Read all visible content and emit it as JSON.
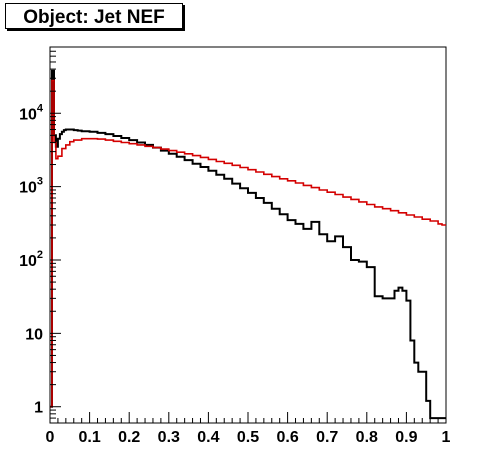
{
  "chart_data": {
    "type": "line",
    "title": "Object: Jet NEF",
    "xlabel": "",
    "ylabel": "",
    "xlim": [
      0,
      1
    ],
    "ylim": [
      0.6,
      80000
    ],
    "yscale": "log",
    "grid": false,
    "legend": "none",
    "x_ticks": [
      0,
      0.1,
      0.2,
      0.3,
      0.4,
      0.5,
      0.6,
      0.7,
      0.8,
      0.9,
      1
    ],
    "x_tick_labels": [
      "0",
      "0.1",
      "0.2",
      "0.3",
      "0.4",
      "0.5",
      "0.6",
      "0.7",
      "0.8",
      "0.9",
      "1"
    ],
    "y_ticks": [
      1,
      10,
      100,
      1000,
      10000
    ],
    "y_tick_labels": [
      {
        "base": "",
        "exp": "",
        "text": "1"
      },
      {
        "base": "",
        "exp": "",
        "text": "10"
      },
      {
        "base": "10",
        "exp": "2",
        "text": ""
      },
      {
        "base": "10",
        "exp": "3",
        "text": ""
      },
      {
        "base": "10",
        "exp": "4",
        "text": ""
      }
    ],
    "series": [
      {
        "color": "#000000",
        "style": "step",
        "x": [
          0,
          0.005,
          0.01,
          0.015,
          0.02,
          0.025,
          0.03,
          0.035,
          0.04,
          0.05,
          0.06,
          0.07,
          0.08,
          0.1,
          0.12,
          0.14,
          0.16,
          0.18,
          0.2,
          0.22,
          0.24,
          0.26,
          0.28,
          0.3,
          0.32,
          0.34,
          0.36,
          0.38,
          0.4,
          0.42,
          0.44,
          0.46,
          0.48,
          0.5,
          0.52,
          0.54,
          0.56,
          0.58,
          0.6,
          0.62,
          0.64,
          0.66,
          0.68,
          0.7,
          0.72,
          0.74,
          0.76,
          0.78,
          0.8,
          0.82,
          0.84,
          0.86,
          0.87,
          0.88,
          0.89,
          0.9,
          0.91,
          0.92,
          0.93,
          0.94,
          0.95,
          0.96,
          0.97,
          0.975,
          0.98,
          0.985,
          0.99
        ],
        "y": [
          1,
          38000,
          5000,
          3500,
          4500,
          5200,
          5600,
          5900,
          6000,
          6000,
          5900,
          5800,
          5700,
          5600,
          5400,
          5200,
          4900,
          4600,
          4300,
          4000,
          3700,
          3400,
          3100,
          2800,
          2550,
          2300,
          2050,
          1850,
          1650,
          1450,
          1280,
          1100,
          950,
          820,
          700,
          600,
          500,
          420,
          350,
          310,
          265,
          330,
          225,
          180,
          210,
          150,
          100,
          95,
          80,
          32,
          30,
          30,
          38,
          42,
          38,
          28,
          8,
          4,
          3,
          3,
          1.2,
          0.7,
          0.7,
          0.7,
          0.7,
          0.7,
          0.7
        ]
      },
      {
        "color": "#d40000",
        "style": "step",
        "x": [
          0,
          0.005,
          0.01,
          0.015,
          0.02,
          0.03,
          0.04,
          0.05,
          0.06,
          0.08,
          0.1,
          0.12,
          0.14,
          0.16,
          0.18,
          0.2,
          0.22,
          0.24,
          0.26,
          0.28,
          0.3,
          0.32,
          0.34,
          0.36,
          0.38,
          0.4,
          0.42,
          0.44,
          0.46,
          0.48,
          0.5,
          0.52,
          0.54,
          0.56,
          0.58,
          0.6,
          0.62,
          0.64,
          0.66,
          0.68,
          0.7,
          0.72,
          0.74,
          0.76,
          0.78,
          0.8,
          0.82,
          0.84,
          0.86,
          0.88,
          0.9,
          0.92,
          0.94,
          0.96,
          0.98,
          0.99
        ],
        "y": [
          1,
          28000,
          4000,
          2400,
          2600,
          3300,
          3700,
          4100,
          4300,
          4500,
          4500,
          4450,
          4300,
          4150,
          4000,
          3850,
          3700,
          3550,
          3400,
          3250,
          3100,
          2950,
          2800,
          2650,
          2500,
          2350,
          2200,
          2080,
          1950,
          1820,
          1700,
          1580,
          1470,
          1370,
          1280,
          1200,
          1120,
          1040,
          970,
          900,
          840,
          780,
          720,
          670,
          620,
          570,
          530,
          500,
          470,
          440,
          410,
          385,
          360,
          340,
          310,
          300
        ]
      }
    ]
  }
}
